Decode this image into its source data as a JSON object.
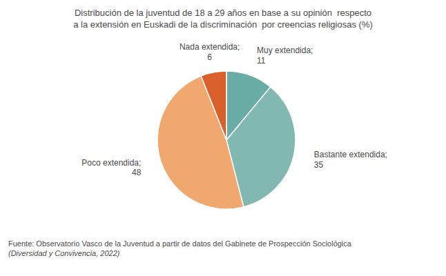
{
  "chart_data": {
    "type": "pie",
    "title": "Distribución de la juventud de 18 a 29 años en base a su opinión  respecto\na la extensión en Euskadi de la discriminación  por creencias religiosas (%)",
    "categories": [
      "Muy extendida;",
      "Bastante extendida;",
      "Poco extendida;",
      "Nada extendida;"
    ],
    "values": [
      11,
      35,
      48,
      6
    ],
    "colors": [
      "#6aaca6",
      "#82b8b2",
      "#f0a86e",
      "#d95f2b"
    ],
    "data_labels": true,
    "annotations": [
      "Fuente: Observatorio Vasco de la Juventud a partir de datos del Gabinete de Prospección Sociológica",
      "(Diversidad y Convivencia, 2022)"
    ]
  }
}
